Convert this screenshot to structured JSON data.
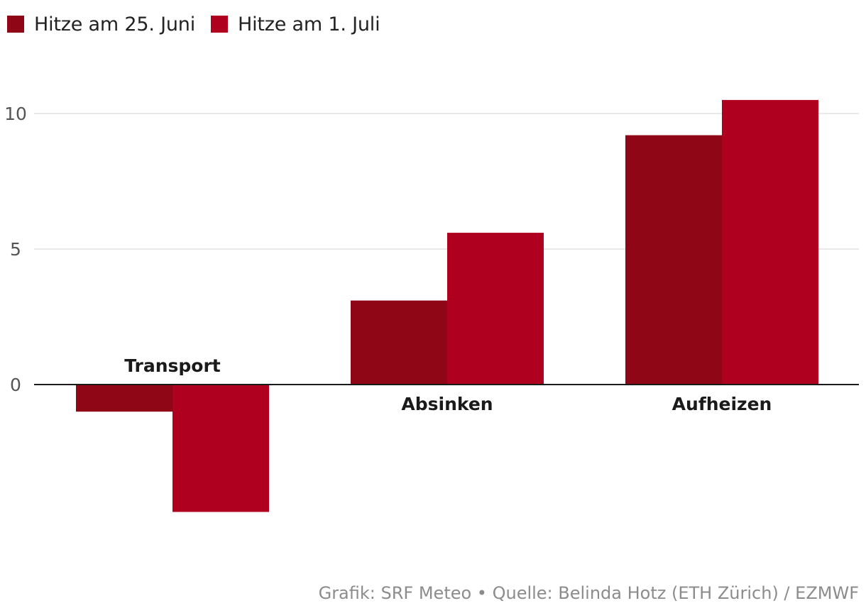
{
  "chart_data": {
    "type": "bar",
    "categories": [
      "Transport",
      "Absinken",
      "Aufheizen"
    ],
    "series": [
      {
        "name": "Hitze am 25. Juni",
        "color": "#8f0717",
        "values": [
          -1.0,
          3.1,
          9.2
        ]
      },
      {
        "name": "Hitze am 1. Juli",
        "color": "#b00020",
        "values": [
          -4.7,
          5.6,
          10.5
        ]
      }
    ],
    "yticks": [
      0,
      5,
      10
    ],
    "ylim": [
      -5.7,
      12
    ],
    "grid": true,
    "legend": "top-left",
    "title": "",
    "xlabel": "",
    "ylabel": ""
  },
  "source": "Grafik: SRF Meteo • Quelle: Belinda Hotz (ETH Zürich) / EZMWF"
}
